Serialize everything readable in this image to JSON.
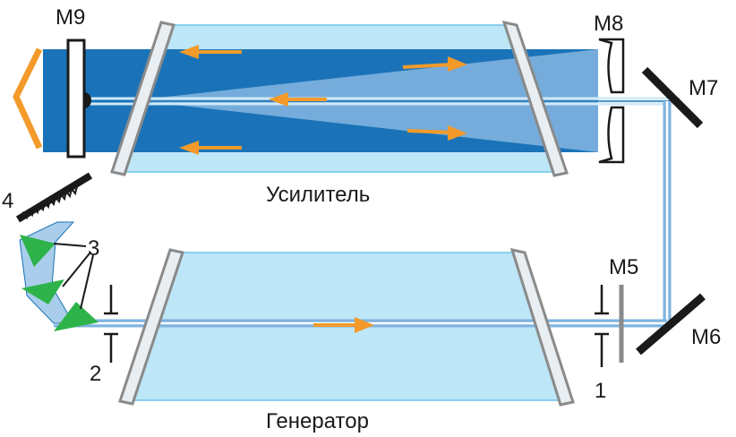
{
  "labels": {
    "m9": "M9",
    "m8": "M8",
    "m7": "M7",
    "m5": "M5",
    "m6": "M6",
    "amplifier": "Усилитель",
    "generator": "Генератор",
    "n4": "4",
    "n3": "3",
    "n2": "2",
    "n1": "1"
  },
  "colors": {
    "amplifier_cell": "#bde6f7",
    "generator_cell": "#bde6f7",
    "beam_dark": "#1a73b8",
    "beam_light": "#7fb3df",
    "arrow": "#f39a2a",
    "prism": "#2db34a",
    "window": "#8a8a8a",
    "mirror": "#1a1a1a",
    "output": "#f39a2a"
  }
}
